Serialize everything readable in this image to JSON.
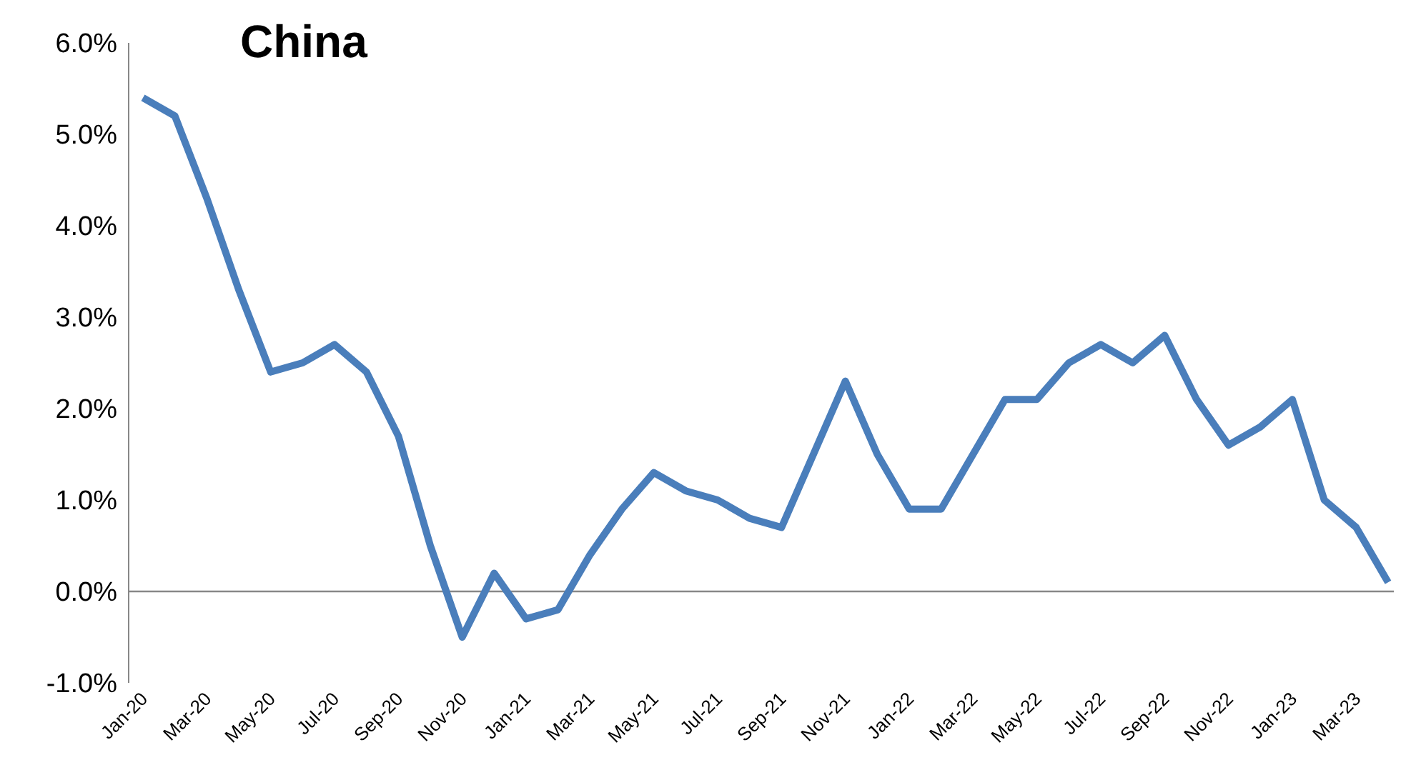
{
  "chart_data": {
    "type": "line",
    "title": "China",
    "categories": [
      "Jan-20",
      null,
      "Mar-20",
      null,
      "May-20",
      null,
      "Jul-20",
      null,
      "Sep-20",
      null,
      "Nov-20",
      null,
      "Jan-21",
      null,
      "Mar-21",
      null,
      "May-21",
      null,
      "Jul-21",
      null,
      "Sep-21",
      null,
      "Nov-21",
      null,
      "Jan-22",
      null,
      "Mar-22",
      null,
      "May-22",
      null,
      "Jul-22",
      null,
      "Sep-22",
      null,
      "Nov-22",
      null,
      "Jan-23",
      null,
      "Mar-23",
      null
    ],
    "series": [
      {
        "color": "#4a7ebb",
        "values": [
          5.4,
          5.2,
          4.3,
          3.3,
          2.4,
          2.5,
          2.7,
          2.4,
          1.7,
          0.5,
          -0.5,
          0.2,
          -0.3,
          -0.2,
          0.4,
          0.9,
          1.3,
          1.1,
          1.0,
          0.8,
          0.7,
          1.5,
          2.3,
          1.5,
          0.9,
          0.9,
          1.5,
          2.1,
          2.1,
          2.5,
          2.7,
          2.5,
          2.8,
          2.1,
          1.6,
          1.8,
          2.1,
          1.0,
          0.7,
          0.1
        ]
      }
    ],
    "ylim": [
      -1,
      6
    ],
    "yticks": [
      {
        "value": -1,
        "label": "-1.0%"
      },
      {
        "value": 0,
        "label": "0.0%"
      },
      {
        "value": 1,
        "label": "1.0%"
      },
      {
        "value": 2,
        "label": "2.0%"
      },
      {
        "value": 3,
        "label": "3.0%"
      },
      {
        "value": 4,
        "label": "4.0%"
      },
      {
        "value": 5,
        "label": "5.0%"
      },
      {
        "value": 6,
        "label": "6.0%"
      }
    ],
    "ref_lines": [
      {
        "axis": "y",
        "value": 0,
        "color": "#888888"
      }
    ],
    "grid": false,
    "legend": false,
    "marker": "none",
    "line_style": "solid"
  }
}
